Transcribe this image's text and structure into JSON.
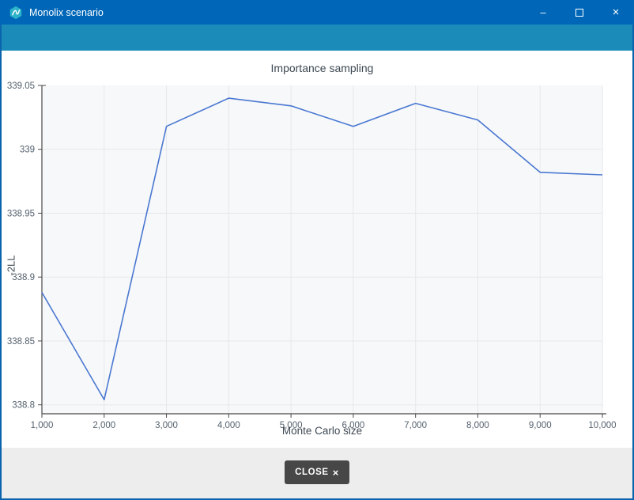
{
  "window": {
    "title": "Monolix scenario",
    "icon": "monolix-logo",
    "controls": {
      "minimize": "–",
      "maximize": "",
      "close": "×"
    }
  },
  "theme": {
    "titlebar": "#0067b8",
    "band": "#1b8cba",
    "footer": "#ededed",
    "winborder": "#0a64ad",
    "btnbg": "#474747",
    "btntext": "#ffffff",
    "plotbg": "#f7f8fa",
    "grid": "#e6e7ea",
    "axis": "#4a4a4a",
    "tick": "#55616e",
    "charttext": "#3d4852"
  },
  "chart_data": {
    "type": "line",
    "title": "Importance sampling",
    "xlabel": "Monte Carlo size",
    "ylabel": "-2LL",
    "x": [
      1000,
      2000,
      3000,
      4000,
      5000,
      6000,
      7000,
      8000,
      9000,
      10000
    ],
    "y": [
      338.888,
      338.804,
      339.018,
      339.04,
      339.034,
      339.018,
      339.036,
      339.023,
      338.982,
      338.98
    ],
    "x_tick_values": [
      1000,
      2000,
      3000,
      4000,
      5000,
      6000,
      7000,
      8000,
      9000,
      10000
    ],
    "x_tick_labels": [
      "1,000",
      "2,000",
      "3,000",
      "4,000",
      "5,000",
      "6,000",
      "7,000",
      "8,000",
      "9,000",
      "10,000"
    ],
    "y_tick_values": [
      339.05,
      339,
      338.95,
      338.9,
      338.85,
      338.8
    ],
    "y_tick_labels": [
      "339.05",
      "339",
      "338.95",
      "338.9",
      "338.85",
      "338.8"
    ],
    "xlim": [
      1000,
      10000
    ],
    "ylim": [
      338.793,
      339.05
    ],
    "grid": true,
    "legend": "none",
    "line_color": "#4a78d1"
  },
  "footer": {
    "close_button": {
      "label": "CLOSE",
      "icon": "×"
    }
  }
}
